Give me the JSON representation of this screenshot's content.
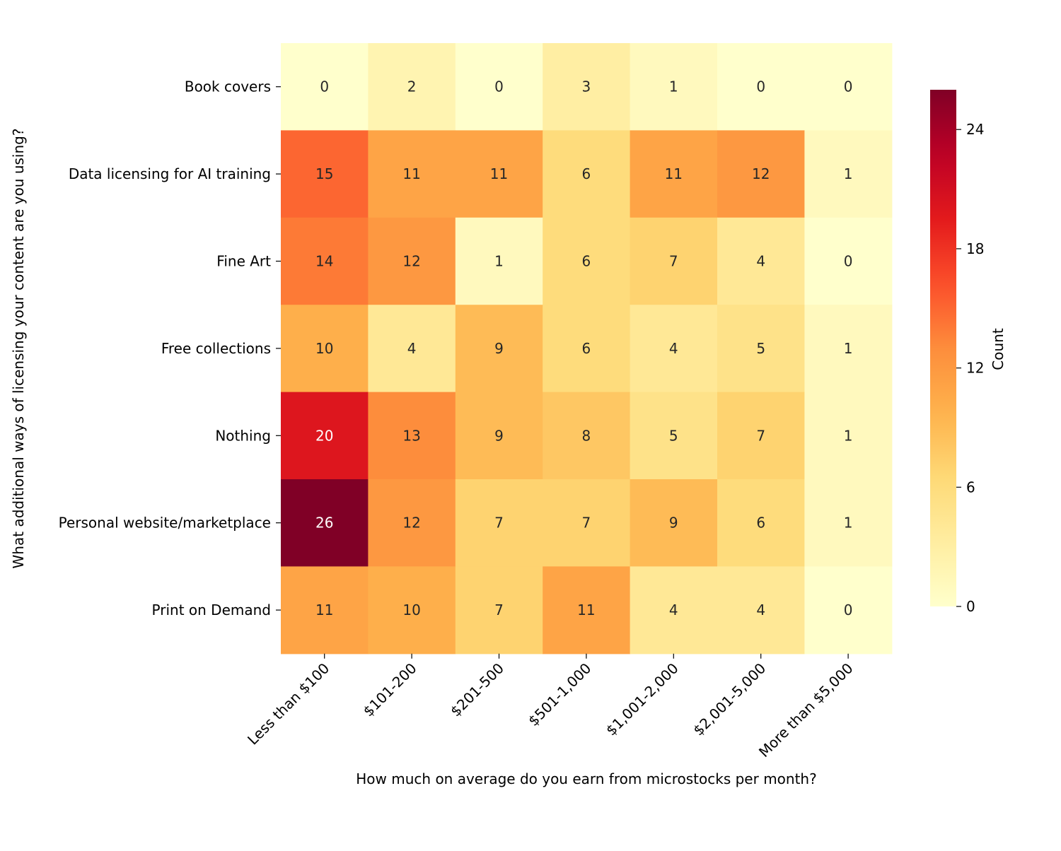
{
  "chart_data": {
    "type": "heatmap",
    "xlabel": "How much on average do you earn from microstocks per month?",
    "ylabel": "What additional ways of licensing your content are you using?",
    "x_categories": [
      "Less than $100",
      "$101-200",
      "$201-500",
      "$501-1,000",
      "$1,001-2,000",
      "$2,001-5,000",
      "More than $5,000"
    ],
    "y_categories": [
      "Book covers",
      "Data licensing for AI training",
      "Fine Art",
      "Free collections",
      "Nothing",
      "Personal website/marketplace",
      "Print on Demand"
    ],
    "values": [
      [
        0,
        2,
        0,
        3,
        1,
        0,
        0
      ],
      [
        15,
        11,
        11,
        6,
        11,
        12,
        1
      ],
      [
        14,
        12,
        1,
        6,
        7,
        4,
        0
      ],
      [
        10,
        4,
        9,
        6,
        4,
        5,
        1
      ],
      [
        20,
        13,
        9,
        8,
        5,
        7,
        1
      ],
      [
        26,
        12,
        7,
        7,
        9,
        6,
        1
      ],
      [
        11,
        10,
        7,
        11,
        4,
        4,
        0
      ]
    ],
    "colorbar": {
      "label": "Count",
      "colormap": "YlOrRd",
      "range": [
        0,
        26
      ],
      "ticks": [
        0,
        6,
        12,
        18,
        24
      ]
    },
    "annotation_colors": {
      "dark": "#262626",
      "light": "#ffffff"
    }
  }
}
